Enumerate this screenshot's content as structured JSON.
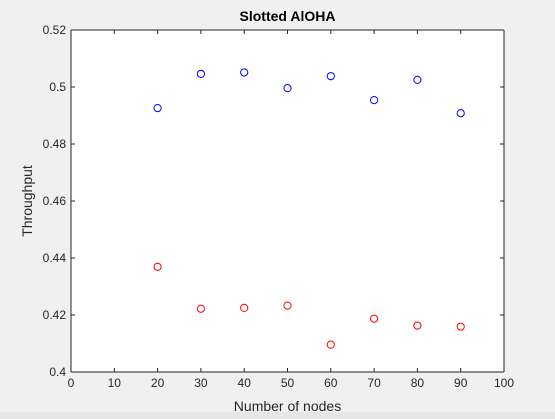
{
  "chart_data": {
    "type": "scatter",
    "title": "Slotted AlOHA",
    "xlabel": "Number of nodes",
    "ylabel": "Throughput",
    "xlim": [
      0,
      100
    ],
    "ylim": [
      0.4,
      0.52
    ],
    "xticks": [
      0,
      10,
      20,
      30,
      40,
      50,
      60,
      70,
      80,
      90,
      100
    ],
    "yticks": [
      0.4,
      0.42,
      0.44,
      0.46,
      0.48,
      0.5,
      0.52
    ],
    "xtick_labels": [
      "0",
      "10",
      "20",
      "30",
      "40",
      "50",
      "60",
      "70",
      "80",
      "90",
      "100"
    ],
    "ytick_labels": [
      "0.4",
      "0.42",
      "0.44",
      "0.46",
      "0.48",
      "0.5",
      "0.52"
    ],
    "grid": false,
    "marker": "circle-open",
    "series": [
      {
        "color": "#0000ff",
        "x": [
          20,
          30,
          40,
          50,
          60,
          70,
          80,
          90
        ],
        "y": [
          0.4926,
          0.5046,
          0.5051,
          0.4996,
          0.5038,
          0.4954,
          0.5025,
          0.4908
        ]
      },
      {
        "color": "#ff0000",
        "x": [
          20,
          30,
          40,
          50,
          60,
          70,
          80,
          90
        ],
        "y": [
          0.4369,
          0.4222,
          0.4225,
          0.4233,
          0.4096,
          0.4187,
          0.4163,
          0.4159
        ]
      }
    ]
  },
  "colors": {
    "figure_background": "#f0f0f0",
    "axes_background": "#ffffff",
    "axis_color": "#262626"
  }
}
